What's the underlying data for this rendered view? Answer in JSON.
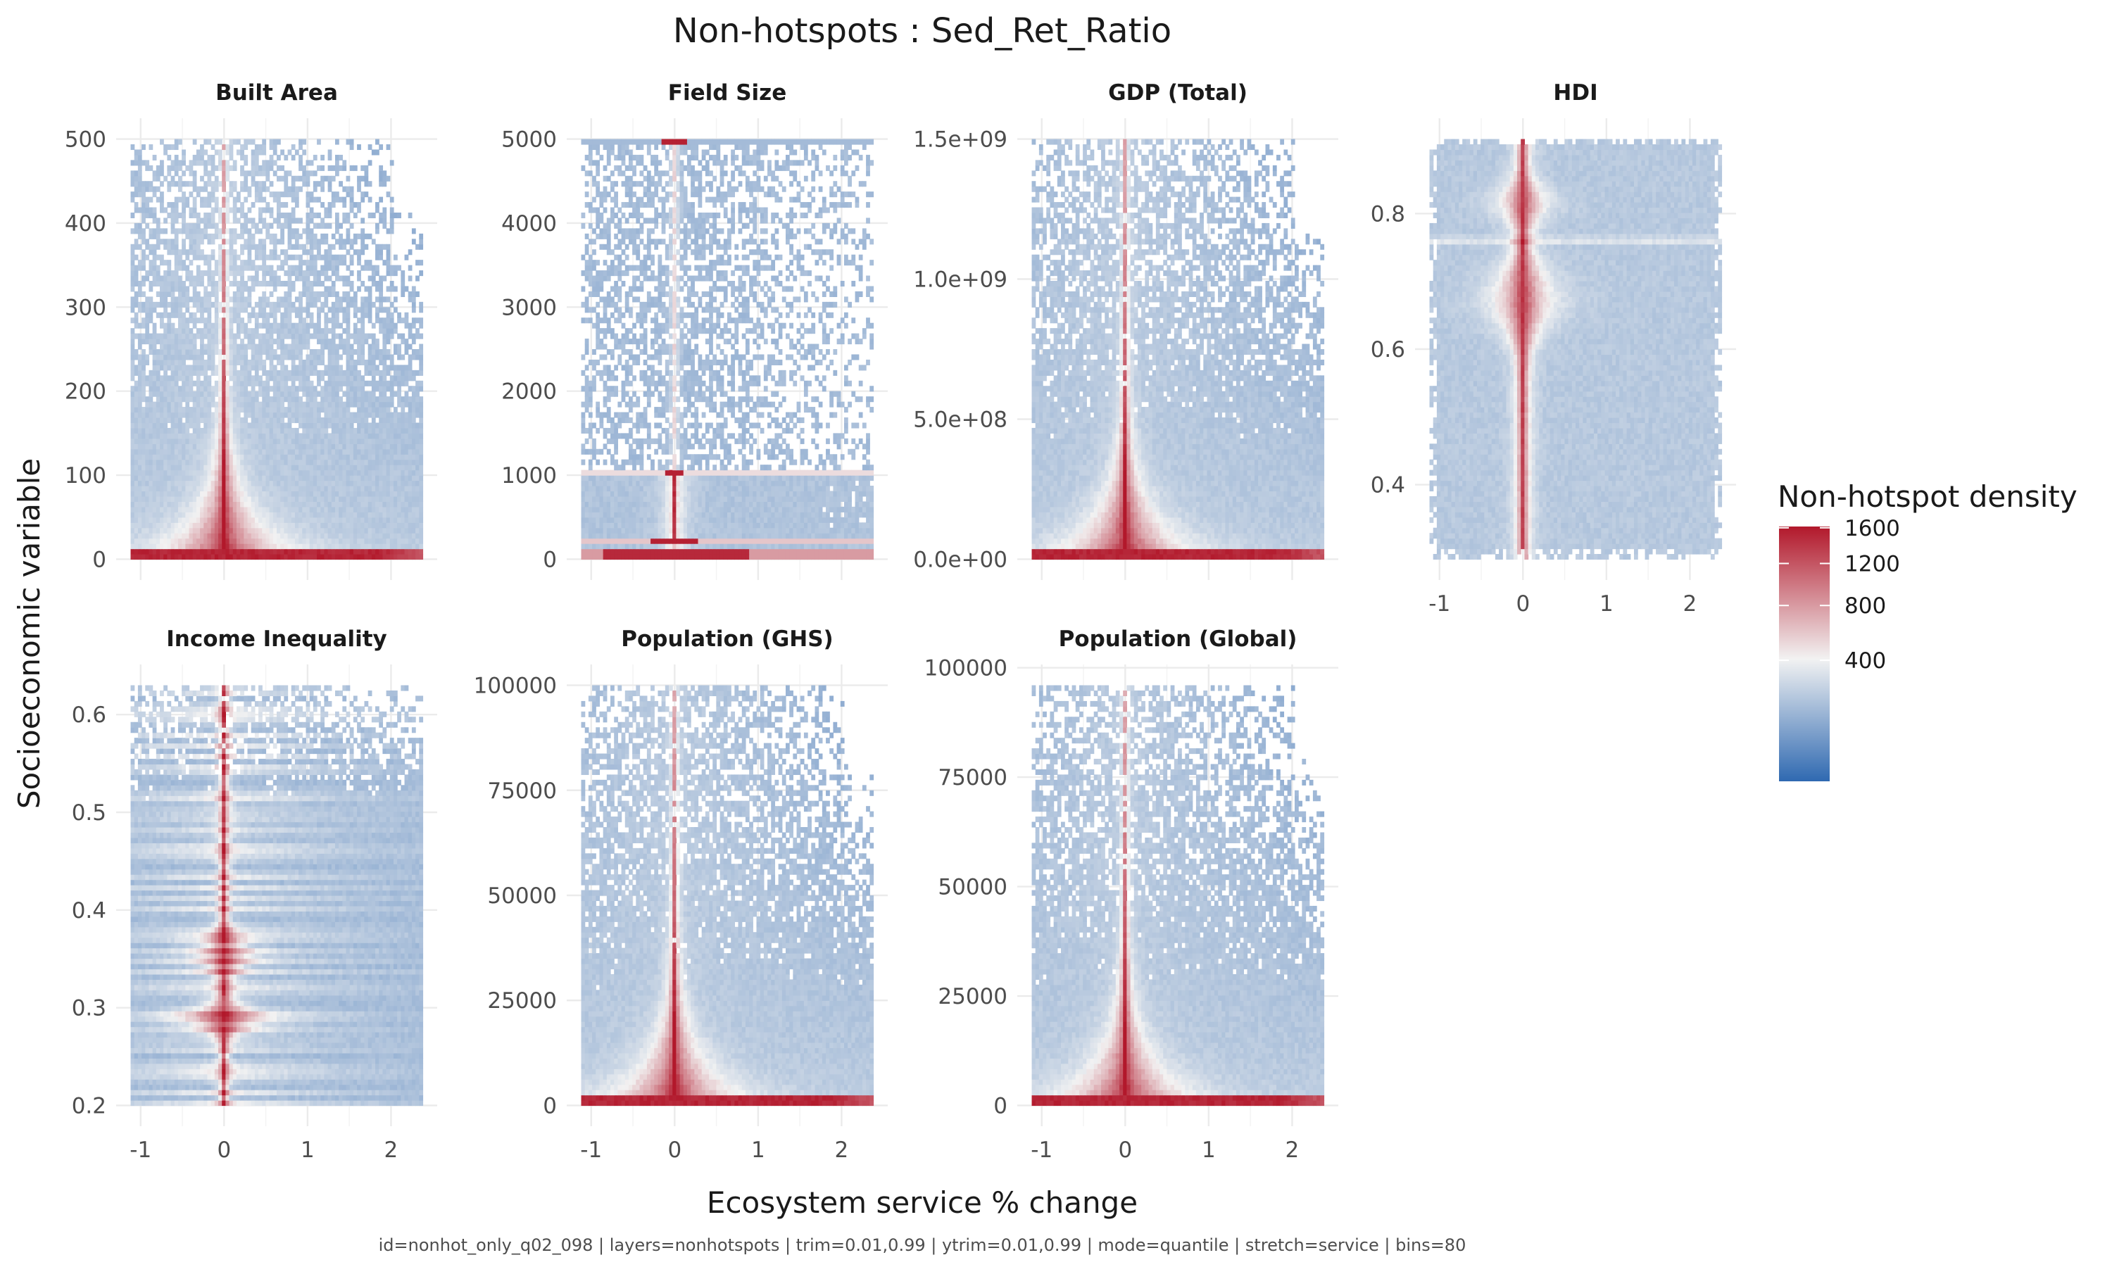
{
  "chart_data": {
    "type": "heatmap",
    "title": "Non-hotspots : Sed_Ret_Ratio",
    "xlabel": "Ecosystem service % change",
    "ylabel": "Socioeconomic variable",
    "caption": "id=nonhot_only_q02_098 | layers=nonhotspots | trim=0.01,0.99 | ytrim=0.01,0.99 | mode=quantile | stretch=service | bins=80",
    "xlim": [
      -1.12,
      2.38
    ],
    "grid": true,
    "legend": {
      "title": "Non-hotspot density",
      "placement": "right",
      "scale": "quantile",
      "ticks": [
        {
          "value": 1600,
          "label": "1600"
        },
        {
          "value": 1200,
          "label": "1200"
        },
        {
          "value": 800,
          "label": "800"
        },
        {
          "value": 400,
          "label": "400"
        }
      ],
      "colors": {
        "low": "#2f69b1",
        "mid": "#f2f2f2",
        "high": "#b2182b"
      }
    },
    "facets": [
      {
        "label": "Built Area",
        "ylim": [
          0,
          500
        ],
        "yticks": [
          "0",
          "100",
          "200",
          "300",
          "400",
          "500"
        ],
        "ytick_values": [
          0,
          100,
          200,
          300,
          400,
          500
        ],
        "xticks": [],
        "pattern": "fan"
      },
      {
        "label": "Field Size",
        "ylim": [
          0,
          5000
        ],
        "yticks": [
          "0",
          "1000",
          "2000",
          "3000",
          "4000",
          "5000"
        ],
        "ytick_values": [
          0,
          1000,
          2000,
          3000,
          4000,
          5000
        ],
        "xticks": [],
        "pattern": "field"
      },
      {
        "label": "GDP (Total)",
        "ylim": [
          0,
          1500000000
        ],
        "yticks": [
          "0.0e+00",
          "5.0e+08",
          "1.0e+09",
          "1.5e+09"
        ],
        "ytick_values": [
          0,
          500000000,
          1000000000,
          1500000000
        ],
        "xticks": [],
        "pattern": "fan"
      },
      {
        "label": "HDI",
        "ylim": [
          0.29,
          0.91
        ],
        "yticks": [
          "0.4",
          "0.6",
          "0.8"
        ],
        "ytick_values": [
          0.4,
          0.6,
          0.8
        ],
        "xticks": [
          "-1",
          "0",
          "1",
          "2"
        ],
        "pattern": "hdi"
      },
      {
        "label": "Income Inequality",
        "ylim": [
          0.2,
          0.63
        ],
        "yticks": [
          "0.2",
          "0.3",
          "0.4",
          "0.5",
          "0.6"
        ],
        "ytick_values": [
          0.2,
          0.3,
          0.4,
          0.5,
          0.6
        ],
        "xticks": [
          "-1",
          "0",
          "1",
          "2"
        ],
        "pattern": "income"
      },
      {
        "label": "Population (GHS)",
        "ylim": [
          0,
          100000
        ],
        "yticks": [
          "0",
          "25000",
          "50000",
          "75000",
          "100000"
        ],
        "ytick_values": [
          0,
          25000,
          50000,
          75000,
          100000
        ],
        "xticks": [
          "-1",
          "0",
          "1",
          "2"
        ],
        "pattern": "fan"
      },
      {
        "label": "Population (Global)",
        "ylim": [
          0,
          96000
        ],
        "yticks": [
          "0",
          "25000",
          "50000",
          "75000",
          "100000"
        ],
        "ytick_values": [
          0,
          25000,
          50000,
          75000,
          100000
        ],
        "xticks": [
          "-1",
          "0",
          "1",
          "2"
        ],
        "pattern": "fan"
      }
    ],
    "xtick_values": [
      -1,
      0,
      1,
      2
    ]
  }
}
